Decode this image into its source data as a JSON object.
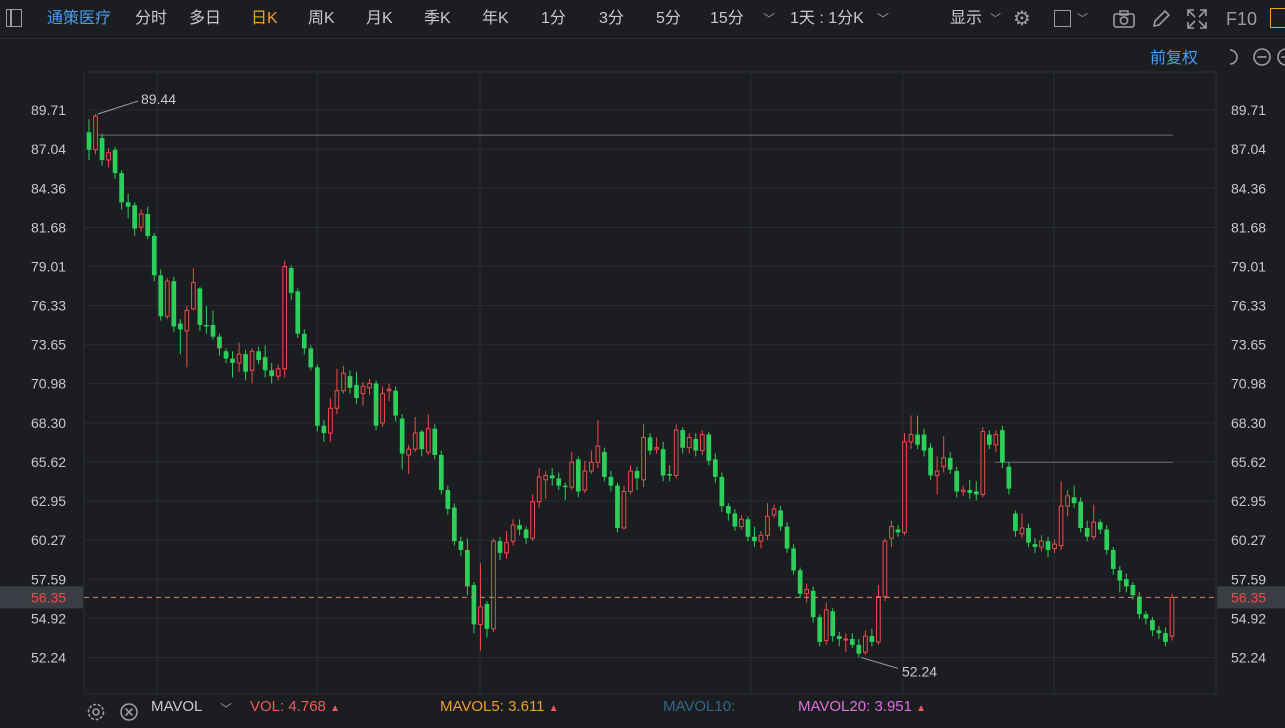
{
  "toolbar": {
    "stock_name": "通策医疗",
    "tabs": [
      "分时",
      "多日",
      "日K",
      "周K",
      "月K",
      "季K",
      "年K",
      "1分",
      "3分",
      "5分",
      "15分"
    ],
    "active_tab": "日K",
    "period_select": "1天 : 1分K",
    "display_label": "显示",
    "f10_label": "F10"
  },
  "adjust_label": "前复权",
  "colors": {
    "up": "#f04a4a",
    "down": "#2bcf5a",
    "name": "#4a9df0",
    "active": "#f0a02a",
    "grid": "#2a2d33"
  },
  "chart_data": {
    "type": "candlestick",
    "ylim": [
      50.9,
      91.05
    ],
    "y_ticks": [
      "89.71",
      "87.04",
      "84.36",
      "81.68",
      "79.01",
      "76.33",
      "73.65",
      "70.98",
      "68.30",
      "65.62",
      "62.95",
      "60.27",
      "57.59",
      "54.92",
      "52.24"
    ],
    "current_price": "56.35",
    "high_marker": "89.44",
    "low_marker": "52.24",
    "resistance_lines": [
      88.0,
      65.6
    ],
    "candles": [
      [
        88.2,
        87.0,
        89.1,
        86.3
      ],
      [
        87.0,
        89.3,
        89.44,
        86.7
      ],
      [
        87.8,
        86.3,
        88.1,
        85.9
      ],
      [
        86.3,
        86.8,
        87.1,
        85.8
      ],
      [
        87.0,
        85.4,
        87.2,
        85.0
      ],
      [
        85.4,
        83.4,
        85.6,
        82.9
      ],
      [
        83.4,
        83.1,
        84.0,
        82.3
      ],
      [
        83.2,
        81.6,
        83.4,
        81.1
      ],
      [
        81.7,
        82.6,
        82.9,
        81.4
      ],
      [
        82.6,
        81.1,
        83.1,
        80.9
      ],
      [
        81.1,
        78.4,
        81.3,
        78.0
      ],
      [
        78.4,
        75.6,
        78.8,
        75.3
      ],
      [
        75.6,
        78.0,
        78.2,
        75.4
      ],
      [
        78.0,
        74.9,
        78.3,
        74.5
      ],
      [
        75.1,
        74.7,
        75.4,
        73.0
      ],
      [
        74.6,
        76.0,
        76.3,
        72.1
      ],
      [
        76.1,
        77.9,
        78.9,
        76.0
      ],
      [
        77.5,
        75.0,
        77.6,
        74.6
      ],
      [
        75.0,
        74.9,
        76.3,
        74.4
      ],
      [
        75.0,
        74.2,
        76.0,
        74.0
      ],
      [
        74.2,
        73.4,
        74.4,
        72.9
      ],
      [
        73.2,
        72.7,
        73.4,
        72.4
      ],
      [
        72.7,
        72.4,
        73.2,
        71.4
      ],
      [
        72.4,
        73.0,
        73.8,
        71.8
      ],
      [
        73.0,
        71.8,
        73.3,
        71.2
      ],
      [
        71.9,
        73.2,
        73.4,
        71.0
      ],
      [
        73.2,
        72.6,
        73.5,
        72.3
      ],
      [
        72.8,
        71.9,
        73.6,
        71.4
      ],
      [
        71.9,
        71.5,
        72.4,
        71.0
      ],
      [
        71.5,
        72.0,
        72.3,
        71.2
      ],
      [
        72.0,
        79.0,
        79.4,
        71.4
      ],
      [
        78.9,
        77.2,
        79.1,
        76.7
      ],
      [
        77.3,
        74.4,
        77.5,
        74.1
      ],
      [
        74.4,
        73.4,
        74.7,
        73.0
      ],
      [
        73.4,
        72.1,
        73.6,
        71.9
      ],
      [
        72.1,
        68.1,
        72.3,
        67.7
      ],
      [
        68.1,
        67.6,
        68.5,
        67.0
      ],
      [
        67.6,
        69.3,
        70.0,
        67.0
      ],
      [
        69.3,
        70.5,
        72.0,
        68.9
      ],
      [
        70.5,
        71.7,
        72.2,
        70.3
      ],
      [
        71.5,
        70.7,
        71.9,
        70.3
      ],
      [
        70.9,
        70.0,
        71.8,
        69.6
      ],
      [
        70.3,
        70.8,
        71.1,
        69.5
      ],
      [
        70.7,
        71.0,
        71.3,
        70.2
      ],
      [
        71.0,
        68.1,
        71.2,
        67.8
      ],
      [
        68.3,
        70.3,
        70.8,
        68.0
      ],
      [
        70.5,
        70.6,
        71.0,
        69.8
      ],
      [
        70.5,
        68.8,
        70.8,
        68.4
      ],
      [
        68.6,
        66.2,
        68.9,
        65.1
      ],
      [
        66.1,
        66.5,
        66.8,
        64.8
      ],
      [
        66.5,
        67.6,
        68.7,
        66.3
      ],
      [
        67.7,
        66.5,
        67.8,
        66.0
      ],
      [
        66.3,
        67.9,
        68.9,
        66.1
      ],
      [
        67.9,
        66.1,
        68.2,
        65.8
      ],
      [
        66.1,
        63.7,
        66.4,
        63.4
      ],
      [
        63.7,
        62.4,
        64.0,
        62.0
      ],
      [
        62.5,
        60.2,
        62.8,
        59.9
      ],
      [
        60.2,
        59.6,
        60.5,
        59.2
      ],
      [
        59.6,
        57.1,
        60.4,
        56.5
      ],
      [
        57.2,
        54.5,
        57.4,
        53.9
      ],
      [
        54.5,
        55.7,
        58.7,
        52.7
      ],
      [
        55.9,
        54.2,
        56.1,
        53.6
      ],
      [
        54.2,
        60.2,
        60.4,
        54.0
      ],
      [
        60.2,
        59.4,
        60.5,
        58.9
      ],
      [
        59.4,
        60.1,
        60.9,
        59.0
      ],
      [
        60.2,
        61.3,
        61.7,
        59.9
      ],
      [
        61.3,
        61.0,
        61.7,
        60.6
      ],
      [
        61.0,
        60.4,
        61.2,
        60.0
      ],
      [
        60.4,
        62.9,
        63.4,
        60.2
      ],
      [
        62.9,
        64.6,
        65.2,
        62.5
      ],
      [
        64.4,
        64.7,
        65.0,
        63.1
      ],
      [
        64.7,
        64.5,
        65.2,
        64.0
      ],
      [
        64.5,
        64.0,
        64.9,
        63.7
      ],
      [
        64.0,
        63.9,
        64.2,
        63.0
      ],
      [
        63.9,
        65.6,
        66.3,
        63.7
      ],
      [
        65.8,
        63.6,
        66.0,
        63.2
      ],
      [
        63.7,
        65.0,
        65.7,
        63.5
      ],
      [
        65.0,
        65.6,
        66.4,
        64.8
      ],
      [
        65.6,
        66.7,
        68.5,
        65.2
      ],
      [
        66.3,
        64.6,
        66.6,
        64.3
      ],
      [
        64.6,
        64.0,
        65.0,
        63.6
      ],
      [
        64.0,
        61.1,
        64.2,
        60.8
      ],
      [
        61.1,
        63.6,
        64.0,
        61.0
      ],
      [
        63.6,
        65.0,
        65.4,
        63.4
      ],
      [
        65.0,
        64.5,
        65.3,
        63.7
      ],
      [
        64.4,
        67.3,
        68.2,
        63.9
      ],
      [
        67.3,
        66.4,
        67.6,
        66.1
      ],
      [
        66.5,
        66.6,
        67.3,
        66.2
      ],
      [
        66.5,
        64.7,
        67.0,
        64.3
      ],
      [
        64.8,
        64.7,
        65.4,
        64.3
      ],
      [
        64.7,
        67.8,
        68.2,
        64.5
      ],
      [
        67.8,
        66.6,
        68.0,
        66.2
      ],
      [
        66.6,
        67.3,
        67.6,
        66.2
      ],
      [
        67.2,
        66.4,
        67.6,
        66.0
      ],
      [
        66.4,
        67.5,
        67.8,
        66.1
      ],
      [
        67.5,
        65.7,
        67.7,
        65.4
      ],
      [
        65.8,
        64.6,
        66.2,
        64.2
      ],
      [
        64.6,
        62.6,
        64.9,
        62.2
      ],
      [
        62.6,
        62.1,
        62.8,
        61.6
      ],
      [
        62.1,
        61.2,
        62.4,
        60.9
      ],
      [
        61.2,
        61.7,
        62.0,
        61.0
      ],
      [
        61.7,
        60.5,
        61.9,
        60.2
      ],
      [
        60.5,
        60.2,
        61.2,
        59.8
      ],
      [
        60.2,
        60.6,
        60.9,
        59.7
      ],
      [
        60.6,
        61.9,
        62.8,
        60.3
      ],
      [
        62.0,
        62.4,
        62.7,
        61.8
      ],
      [
        62.3,
        61.2,
        62.6,
        60.9
      ],
      [
        61.2,
        59.7,
        61.5,
        59.4
      ],
      [
        59.7,
        58.2,
        60.0,
        57.9
      ],
      [
        58.2,
        56.6,
        58.4,
        56.3
      ],
      [
        56.6,
        56.9,
        57.3,
        56.0
      ],
      [
        56.8,
        55.0,
        57.1,
        54.6
      ],
      [
        55.0,
        53.3,
        55.2,
        53.0
      ],
      [
        53.4,
        55.5,
        56.0,
        53.1
      ],
      [
        55.4,
        53.7,
        55.6,
        53.3
      ],
      [
        53.7,
        53.5,
        54.0,
        53.0
      ],
      [
        53.5,
        53.5,
        53.9,
        52.6
      ],
      [
        53.5,
        53.1,
        53.9,
        52.9
      ],
      [
        53.1,
        52.5,
        53.5,
        52.24
      ],
      [
        52.6,
        53.7,
        54.1,
        52.4
      ],
      [
        53.7,
        53.3,
        54.2,
        53.0
      ],
      [
        53.3,
        56.4,
        57.2,
        53.1
      ],
      [
        56.4,
        60.2,
        60.4,
        56.1
      ],
      [
        60.4,
        61.2,
        61.6,
        59.8
      ],
      [
        61.0,
        60.8,
        61.3,
        60.5
      ],
      [
        60.8,
        67.0,
        67.6,
        60.6
      ],
      [
        67.0,
        67.5,
        68.8,
        66.5
      ],
      [
        67.5,
        66.8,
        68.8,
        66.5
      ],
      [
        67.5,
        66.4,
        67.9,
        66.0
      ],
      [
        66.6,
        64.7,
        66.9,
        64.4
      ],
      [
        64.7,
        65.0,
        66.0,
        63.4
      ],
      [
        65.3,
        65.9,
        67.4,
        64.9
      ],
      [
        65.9,
        65.1,
        66.3,
        64.8
      ],
      [
        65.0,
        63.6,
        65.3,
        63.2
      ],
      [
        63.6,
        63.7,
        64.0,
        63.3
      ],
      [
        63.7,
        63.5,
        64.4,
        63.1
      ],
      [
        63.6,
        63.4,
        64.3,
        63.0
      ],
      [
        63.4,
        67.7,
        68.0,
        63.2
      ],
      [
        67.5,
        66.8,
        67.8,
        66.5
      ],
      [
        66.8,
        67.5,
        67.8,
        66.3
      ],
      [
        67.8,
        65.6,
        68.1,
        65.2
      ],
      [
        65.3,
        63.8,
        65.6,
        63.4
      ],
      [
        62.1,
        60.9,
        62.3,
        60.5
      ],
      [
        60.7,
        61.1,
        62.1,
        60.4
      ],
      [
        61.1,
        60.1,
        61.4,
        59.8
      ],
      [
        60.0,
        59.8,
        60.4,
        59.4
      ],
      [
        59.8,
        60.2,
        60.6,
        59.5
      ],
      [
        60.2,
        59.6,
        60.5,
        59.1
      ],
      [
        59.7,
        60.0,
        60.3,
        59.4
      ],
      [
        59.9,
        62.6,
        64.3,
        59.6
      ],
      [
        62.6,
        63.3,
        63.7,
        61.9
      ],
      [
        63.2,
        62.8,
        64.0,
        62.5
      ],
      [
        62.9,
        61.1,
        63.2,
        60.8
      ],
      [
        61.1,
        60.5,
        61.6,
        60.2
      ],
      [
        60.5,
        61.5,
        62.7,
        60.3
      ],
      [
        61.5,
        61.0,
        61.7,
        60.7
      ],
      [
        61.0,
        59.6,
        61.3,
        59.3
      ],
      [
        59.6,
        58.3,
        59.8,
        57.9
      ],
      [
        58.2,
        57.5,
        58.5,
        56.7
      ],
      [
        57.6,
        57.1,
        58.0,
        56.7
      ],
      [
        57.2,
        56.5,
        57.4,
        56.2
      ],
      [
        56.4,
        55.2,
        56.7,
        54.9
      ],
      [
        55.2,
        54.9,
        55.4,
        54.5
      ],
      [
        54.8,
        54.1,
        55.0,
        53.7
      ],
      [
        54.1,
        53.9,
        54.4,
        53.5
      ],
      [
        53.9,
        53.3,
        54.3,
        53.0
      ],
      [
        53.7,
        56.35,
        56.6,
        53.4
      ]
    ]
  },
  "indicator": {
    "name": "MAVOL",
    "vol_label": "VOL:",
    "vol_value": "4.768",
    "mavol5_label": "MAVOL5:",
    "mavol5_value": "3.611",
    "mavol10_label": "MAVOL10:",
    "mavol20_label": "MAVOL20:",
    "mavol20_value": "3.951",
    "colors": {
      "vol": "#f05a5a",
      "mavol5": "#f0a02a",
      "mavol10": "#2d6b8a",
      "mavol20": "#e070e0"
    }
  }
}
